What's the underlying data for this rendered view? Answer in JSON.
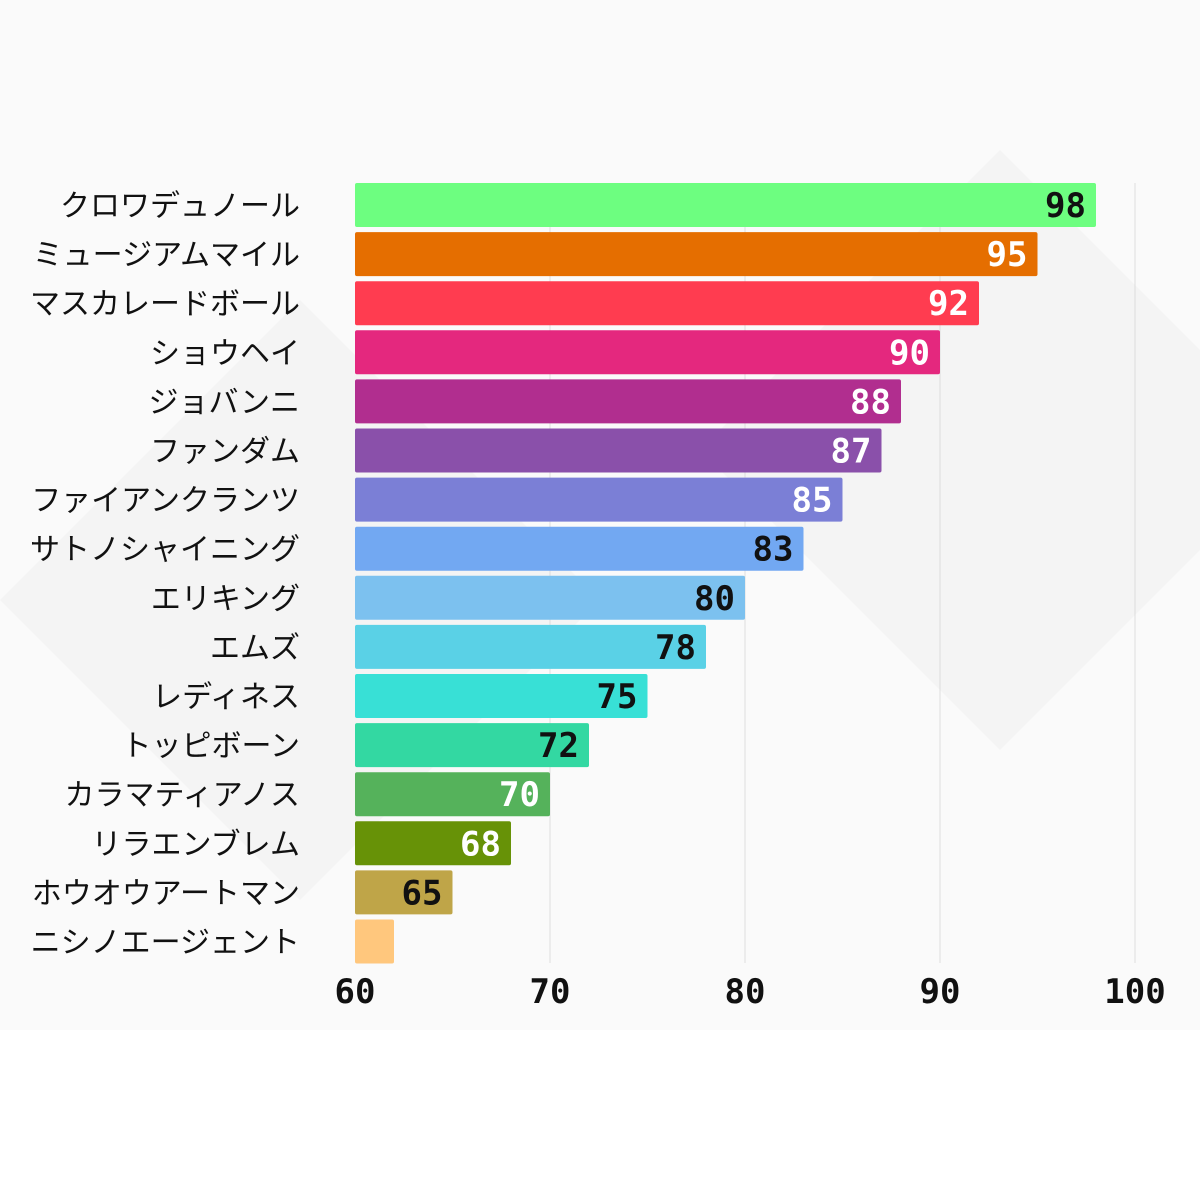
{
  "chart_data": {
    "type": "bar",
    "orientation": "horizontal",
    "title": "",
    "xlabel": "",
    "ylabel": "",
    "xlim": [
      60,
      100
    ],
    "x_ticks": [
      60,
      70,
      80,
      90,
      100
    ],
    "grid": "vertical",
    "legend": "none",
    "categories": [
      "クロワデュノール",
      "ミュージアムマイル",
      "マスカレードボール",
      "ショウヘイ",
      "ジョバンニ",
      "ファンダム",
      "ファイアンクランツ",
      "サトノシャイニング",
      "エリキング",
      "エムズ",
      "レディネス",
      "トッピボーン",
      "カラマティアノス",
      "リラエンブレム",
      "ホウオウアートマン",
      "ニシノエージェント"
    ],
    "values": [
      98,
      95,
      92,
      90,
      88,
      87,
      85,
      83,
      80,
      78,
      75,
      72,
      70,
      68,
      65,
      62
    ],
    "data_labels": [
      "98",
      "95",
      "92",
      "90",
      "88",
      "87",
      "85",
      "83",
      "80",
      "78",
      "75",
      "72",
      "70",
      "68",
      "65",
      ""
    ],
    "colors": [
      "#6dfe80",
      "#e56e00",
      "#ff3c50",
      "#e4287e",
      "#b12e8f",
      "#8a50aa",
      "#7b7fd6",
      "#72a8f2",
      "#7cc1ef",
      "#5ad1e6",
      "#38e0d6",
      "#33d8a2",
      "#55b25b",
      "#679207",
      "#bfa548",
      "#ffc77d"
    ],
    "label_colors": [
      "#111111",
      "#ffffff",
      "#ffffff",
      "#ffffff",
      "#ffffff",
      "#ffffff",
      "#ffffff",
      "#111111",
      "#111111",
      "#111111",
      "#111111",
      "#111111",
      "#ffffff",
      "#ffffff",
      "#111111",
      "#111111"
    ]
  }
}
